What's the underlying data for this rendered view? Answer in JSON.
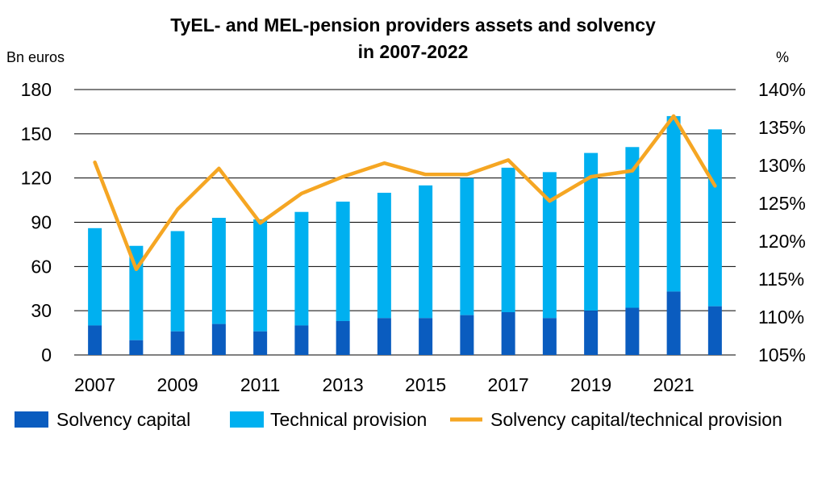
{
  "chart_data": {
    "type": "bar",
    "title_line1": "TyEL- and MEL-pension providers assets and solvency",
    "title_line2": "in 2007-2022",
    "ylabel_left": "Bn euros",
    "ylabel_right": "%",
    "ylim_left": [
      0,
      180
    ],
    "yticks_left": [
      0,
      30,
      60,
      90,
      120,
      150,
      180
    ],
    "ylim_right": [
      105,
      140
    ],
    "yticks_right": [
      "105%",
      "110%",
      "115%",
      "120%",
      "125%",
      "130%",
      "135%",
      "140%"
    ],
    "yticks_right_values": [
      105,
      110,
      115,
      120,
      125,
      130,
      135,
      140
    ],
    "grid": true,
    "legend_position": "bottom",
    "categories": [
      2007,
      2008,
      2009,
      2010,
      2011,
      2012,
      2013,
      2014,
      2015,
      2016,
      2017,
      2018,
      2019,
      2020,
      2021,
      2022
    ],
    "x_tick_labels": [
      "2007",
      "2009",
      "2011",
      "2013",
      "2015",
      "2017",
      "2019",
      "2021"
    ],
    "stacked": true,
    "series": [
      {
        "name": "Solvency capital",
        "kind": "bar",
        "axis": "left",
        "color": "#0a5cbf",
        "values": [
          20,
          10,
          16,
          21,
          16,
          20,
          23,
          25,
          25,
          27,
          29,
          25,
          30,
          32,
          43,
          33
        ]
      },
      {
        "name": "Technical provision",
        "kind": "bar",
        "axis": "left",
        "color": "#00b0f0",
        "values": [
          66,
          64,
          68,
          72,
          76,
          77,
          81,
          85,
          90,
          93,
          98,
          99,
          107,
          109,
          119,
          120
        ]
      },
      {
        "name": "Solvency capital/technical provision",
        "kind": "line",
        "axis": "right",
        "color": "#f5a623",
        "values": [
          130.4,
          116.3,
          124.2,
          129.6,
          122.4,
          126.3,
          128.5,
          130.3,
          128.8,
          128.8,
          130.7,
          125.3,
          128.5,
          129.3,
          136.5,
          127.3
        ]
      }
    ]
  }
}
